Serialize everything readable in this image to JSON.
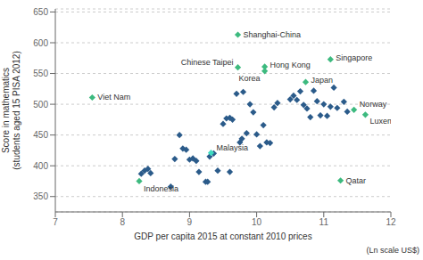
{
  "chart_data": {
    "type": "scatter",
    "xlabel": "GDP per capita 2015 at constant 2010 prices",
    "ylabel": "Score in mathematics\n(students aged 15 PISA 2012)",
    "annotations": [
      "(Ln scale US$)"
    ],
    "xlim": [
      7,
      12
    ],
    "ylim": [
      325,
      655
    ],
    "xticks": [
      7,
      8,
      9,
      10,
      11,
      12
    ],
    "yticks": [
      350,
      400,
      450,
      500,
      550,
      600,
      650
    ],
    "grid": true,
    "series": [
      {
        "color": "#2b5b8a",
        "marker": "diamond",
        "x": [
          8.28,
          8.33,
          8.38,
          8.42,
          8.72,
          8.78,
          8.85,
          8.9,
          8.95,
          9.0,
          9.05,
          9.1,
          9.14,
          9.24,
          9.27,
          9.3,
          9.36,
          9.42,
          9.5,
          9.55,
          9.6,
          9.64,
          9.7,
          9.75,
          9.78,
          9.8,
          9.85,
          9.9,
          9.95,
          10.0,
          10.05,
          10.1,
          10.15,
          10.2,
          10.26,
          10.31,
          10.5,
          10.55,
          10.6,
          10.65,
          10.7,
          10.75,
          10.8,
          10.85,
          10.9,
          10.95,
          11.0,
          11.05,
          11.1,
          11.15,
          11.2,
          11.3,
          11.35,
          9.6
        ],
        "values": [
          387,
          392,
          395,
          388,
          366,
          411,
          450,
          428,
          426,
          410,
          412,
          408,
          390,
          374,
          374,
          415,
          420,
          392,
          468,
          477,
          478,
          475,
          517,
          438,
          444,
          520,
          453,
          500,
          487,
          451,
          432,
          466,
          438,
          437,
          495,
          502,
          508,
          514,
          507,
          521,
          499,
          493,
          479,
          522,
          505,
          482,
          500,
          481,
          496,
          527,
          494,
          504,
          488,
          390
        ]
      },
      {
        "colors": [
          "#3dba7f",
          "#3dba7f",
          "#3ddbc0",
          "#3dba7f",
          "#3dba7f",
          "#3dba7f",
          "#3dba7f",
          "#3dba7f",
          "#3dba7f",
          "#3dba7f",
          "#3dba7f",
          "#3dba7f"
        ],
        "marker": "diamond",
        "x": [
          7.55,
          8.25,
          9.32,
          9.72,
          9.72,
          10.12,
          10.12,
          10.73,
          11.1,
          11.45,
          11.62,
          11.25
        ],
        "values": [
          511,
          375,
          421,
          613,
          560,
          561,
          554,
          536,
          573,
          491,
          483,
          376
        ],
        "labels": [
          "Viet Nam",
          "Indonesia",
          "Malaysia",
          "Shanghai-China",
          "Chinese Taipei",
          "Hong Kong",
          "Korea",
          "Japan",
          "Singapore",
          "Norway",
          "Luxembourg",
          "Qatar"
        ]
      }
    ]
  }
}
